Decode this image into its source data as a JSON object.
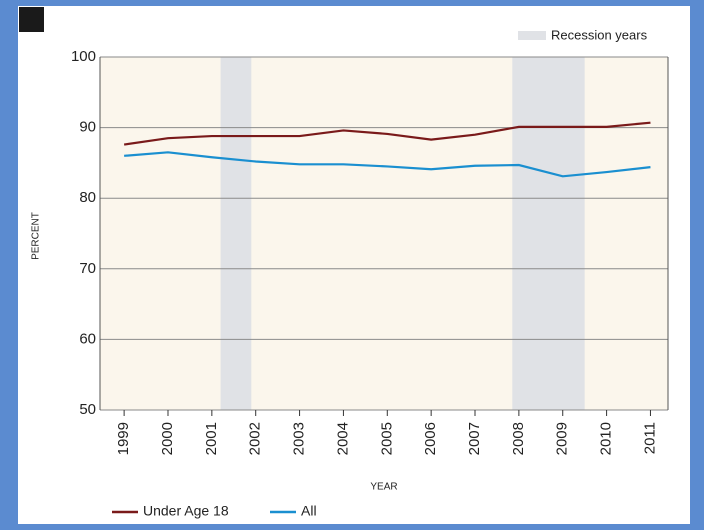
{
  "chart_data": {
    "type": "line",
    "x": [
      1999,
      2000,
      2001,
      2002,
      2003,
      2004,
      2005,
      2006,
      2007,
      2008,
      2009,
      2010,
      2011
    ],
    "series": [
      {
        "name": "Under Age 18",
        "color": "#7a1a1a",
        "values": [
          87.6,
          88.5,
          88.8,
          88.8,
          88.8,
          89.6,
          89.1,
          88.3,
          89.0,
          90.1,
          90.1,
          90.1,
          90.7
        ]
      },
      {
        "name": "All",
        "color": "#1a8fd0",
        "values": [
          86.0,
          86.5,
          85.8,
          85.2,
          84.8,
          84.8,
          84.5,
          84.1,
          84.6,
          84.7,
          83.1,
          83.7,
          84.4
        ]
      }
    ],
    "recession_label": "Recession years",
    "recession_color": "#e0e2e6",
    "recessions": [
      [
        2001.2,
        2001.9
      ],
      [
        2007.85,
        2009.5
      ]
    ],
    "xlabel": "YEAR",
    "ylabel": "PERCENT",
    "xlim": [
      1998.45,
      2011.4
    ],
    "xticks": [
      1999,
      2000,
      2001,
      2002,
      2003,
      2004,
      2005,
      2006,
      2007,
      2008,
      2009,
      2010,
      2011
    ],
    "ylim": [
      50,
      100
    ],
    "yticks": [
      50,
      60,
      70,
      80,
      90,
      100
    ],
    "grid": true
  }
}
